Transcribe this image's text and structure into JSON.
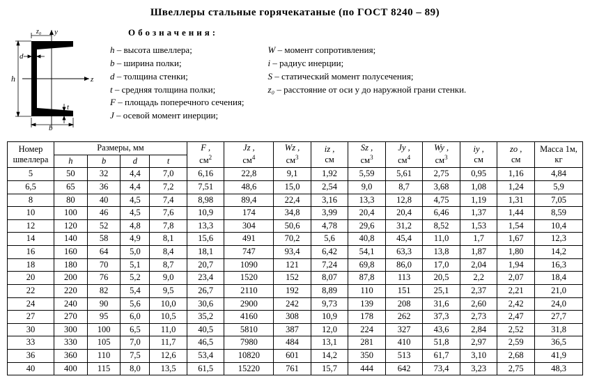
{
  "title": "Швеллеры  стальные  горячекатаные  (по ГОСТ 8240 – 89)",
  "legend_heading": "Обозначения:",
  "legend_left": [
    {
      "sym": "h",
      "txt": " – высота швеллера;"
    },
    {
      "sym": "b",
      "txt": " – ширина полки;"
    },
    {
      "sym": "d",
      "txt": " – толщина стенки;"
    },
    {
      "sym": "t",
      "txt": " – средняя толщина полки;"
    },
    {
      "sym": "F",
      "txt": " – площадь поперечного сечения;"
    },
    {
      "sym": "J",
      "txt": " – осевой момент инерции;"
    }
  ],
  "legend_right": [
    {
      "sym": "W",
      "txt": " – момент сопротивления;"
    },
    {
      "sym": "i",
      "txt": " – радиус инерции;"
    },
    {
      "sym": "S",
      "txt": " – статический момент полусечения;"
    },
    {
      "sym": "z₀",
      "txt": " – расстояние от оси  y  до наружной грани стенки."
    }
  ],
  "head": {
    "no": "Номер швеллера",
    "dims": "Размеры, мм",
    "F": {
      "l": "F ,",
      "u": "см",
      "p": "2"
    },
    "Jz": {
      "l": "Jz ,",
      "u": "см",
      "p": "4"
    },
    "Wz": {
      "l": "Wz ,",
      "u": "см",
      "p": "3"
    },
    "iz": {
      "l": "iz ,",
      "u": "см",
      "p": ""
    },
    "Sz": {
      "l": "Sz ,",
      "u": "см",
      "p": "3"
    },
    "Jy": {
      "l": "Jy ,",
      "u": "см",
      "p": "4"
    },
    "Wy": {
      "l": "Wy ,",
      "u": "см",
      "p": "3"
    },
    "iy": {
      "l": "iy ,",
      "u": "см",
      "p": ""
    },
    "zo": {
      "l": "zо ,",
      "u": "см",
      "p": ""
    },
    "mass": "Масса 1м, кг",
    "h": "h",
    "b": "b",
    "d": "d",
    "t": "t"
  },
  "rows": [
    [
      "5",
      "50",
      "32",
      "4,4",
      "7,0",
      "6,16",
      "22,8",
      "9,1",
      "1,92",
      "5,59",
      "5,61",
      "2,75",
      "0,95",
      "1,16",
      "4,84"
    ],
    [
      "6,5",
      "65",
      "36",
      "4,4",
      "7,2",
      "7,51",
      "48,6",
      "15,0",
      "2,54",
      "9,0",
      "8,7",
      "3,68",
      "1,08",
      "1,24",
      "5,9"
    ],
    [
      "8",
      "80",
      "40",
      "4,5",
      "7,4",
      "8,98",
      "89,4",
      "22,4",
      "3,16",
      "13,3",
      "12,8",
      "4,75",
      "1,19",
      "1,31",
      "7,05"
    ],
    [
      "10",
      "100",
      "46",
      "4,5",
      "7,6",
      "10,9",
      "174",
      "34,8",
      "3,99",
      "20,4",
      "20,4",
      "6,46",
      "1,37",
      "1,44",
      "8,59"
    ],
    [
      "12",
      "120",
      "52",
      "4,8",
      "7,8",
      "13,3",
      "304",
      "50,6",
      "4,78",
      "29,6",
      "31,2",
      "8,52",
      "1,53",
      "1,54",
      "10,4"
    ],
    [
      "14",
      "140",
      "58",
      "4,9",
      "8,1",
      "15,6",
      "491",
      "70,2",
      "5,6",
      "40,8",
      "45,4",
      "11,0",
      "1,7",
      "1,67",
      "12,3"
    ],
    [
      "16",
      "160",
      "64",
      "5,0",
      "8,4",
      "18,1",
      "747",
      "93,4",
      "6,42",
      "54,1",
      "63,3",
      "13,8",
      "1,87",
      "1,80",
      "14,2"
    ],
    [
      "18",
      "180",
      "70",
      "5,1",
      "8,7",
      "20,7",
      "1090",
      "121",
      "7,24",
      "69,8",
      "86,0",
      "17,0",
      "2,04",
      "1,94",
      "16,3"
    ],
    [
      "20",
      "200",
      "76",
      "5,2",
      "9,0",
      "23,4",
      "1520",
      "152",
      "8,07",
      "87,8",
      "113",
      "20,5",
      "2,2",
      "2,07",
      "18,4"
    ],
    [
      "22",
      "220",
      "82",
      "5,4",
      "9,5",
      "26,7",
      "2110",
      "192",
      "8,89",
      "110",
      "151",
      "25,1",
      "2,37",
      "2,21",
      "21,0"
    ],
    [
      "24",
      "240",
      "90",
      "5,6",
      "10,0",
      "30,6",
      "2900",
      "242",
      "9,73",
      "139",
      "208",
      "31,6",
      "2,60",
      "2,42",
      "24,0"
    ],
    [
      "27",
      "270",
      "95",
      "6,0",
      "10,5",
      "35,2",
      "4160",
      "308",
      "10,9",
      "178",
      "262",
      "37,3",
      "2,73",
      "2,47",
      "27,7"
    ],
    [
      "30",
      "300",
      "100",
      "6,5",
      "11,0",
      "40,5",
      "5810",
      "387",
      "12,0",
      "224",
      "327",
      "43,6",
      "2,84",
      "2,52",
      "31,8"
    ],
    [
      "33",
      "330",
      "105",
      "7,0",
      "11,7",
      "46,5",
      "7980",
      "484",
      "13,1",
      "281",
      "410",
      "51,8",
      "2,97",
      "2,59",
      "36,5"
    ],
    [
      "36",
      "360",
      "110",
      "7,5",
      "12,6",
      "53,4",
      "10820",
      "601",
      "14,2",
      "350",
      "513",
      "61,7",
      "3,10",
      "2,68",
      "41,9"
    ],
    [
      "40",
      "400",
      "115",
      "8,0",
      "13,5",
      "61,5",
      "15220",
      "761",
      "15,7",
      "444",
      "642",
      "73,4",
      "3,23",
      "2,75",
      "48,3"
    ]
  ],
  "style": {
    "col_count": 15,
    "border_color": "#000000",
    "font": "Times New Roman",
    "svg": {
      "stroke": "#000000",
      "fill": "#000000",
      "thin": 0.8,
      "thick": 2.2
    }
  }
}
